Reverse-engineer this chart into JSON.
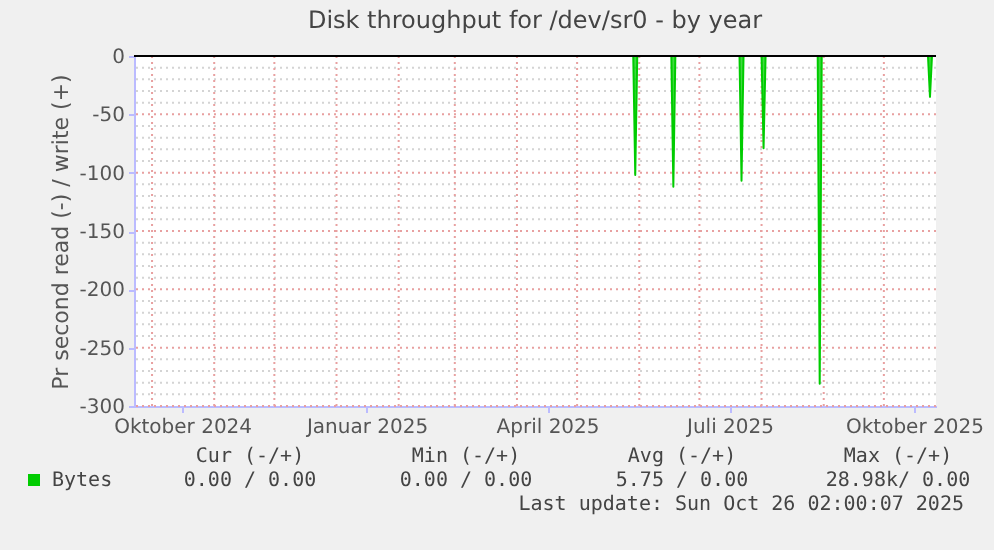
{
  "chart_data": {
    "type": "area",
    "title": "Disk throughput for /dev/sr0 - by year",
    "ylabel": "Pr second read (-) / write (+)",
    "series": [
      {
        "name": "Bytes",
        "color": "#00cc00",
        "x": [
          "2024-09-22",
          "2025-05-29",
          "2025-05-30",
          "2025-05-31",
          "2025-06-17",
          "2025-06-18",
          "2025-06-19",
          "2025-07-21",
          "2025-07-22",
          "2025-07-23",
          "2025-08-01",
          "2025-08-02",
          "2025-08-03",
          "2025-08-29",
          "2025-08-30",
          "2025-08-31",
          "2025-10-23",
          "2025-10-24",
          "2025-10-25",
          "2025-10-26"
        ],
        "values": [
          0,
          0,
          -102,
          0,
          0,
          -112,
          0,
          0,
          -107,
          0,
          0,
          -79,
          0,
          0,
          -281,
          0,
          0,
          -35,
          0,
          0
        ]
      }
    ],
    "xlim": [
      "2024-09-22",
      "2025-10-27"
    ],
    "xticks": [
      {
        "value": "2024-10-16",
        "label": "Oktober 2024"
      },
      {
        "value": "2025-01-16",
        "label": "Januar 2025"
      },
      {
        "value": "2025-04-16",
        "label": "April 2025"
      },
      {
        "value": "2025-07-16",
        "label": "Juli 2025"
      },
      {
        "value": "2025-10-16",
        "label": "Oktober 2025"
      },
      {
        "value": "2024-10-01",
        "label": null
      },
      {
        "value": "2024-11-01",
        "label": null
      },
      {
        "value": "2024-12-01",
        "label": null
      },
      {
        "value": "2025-01-01",
        "label": null
      },
      {
        "value": "2025-02-01",
        "label": null
      },
      {
        "value": "2025-03-01",
        "label": null
      },
      {
        "value": "2025-04-01",
        "label": null
      },
      {
        "value": "2025-05-01",
        "label": null
      },
      {
        "value": "2025-06-01",
        "label": null
      },
      {
        "value": "2025-07-01",
        "label": null
      },
      {
        "value": "2025-08-01",
        "label": null
      },
      {
        "value": "2025-09-01",
        "label": null
      },
      {
        "value": "2025-10-01",
        "label": null
      }
    ],
    "ylim": [
      -300,
      0
    ],
    "yticks": [
      0,
      -50,
      -100,
      -150,
      -200,
      -250,
      -300,
      {
        "value": -10,
        "label": null
      },
      {
        "value": -20,
        "label": null
      },
      {
        "value": -30,
        "label": null
      },
      {
        "value": -40,
        "label": null
      },
      {
        "value": -60,
        "label": null
      },
      {
        "value": -70,
        "label": null
      },
      {
        "value": -80,
        "label": null
      },
      {
        "value": -90,
        "label": null
      },
      {
        "value": -110,
        "label": null
      },
      {
        "value": -120,
        "label": null
      },
      {
        "value": -130,
        "label": null
      },
      {
        "value": -140,
        "label": null
      },
      {
        "value": -160,
        "label": null
      },
      {
        "value": -170,
        "label": null
      },
      {
        "value": -180,
        "label": null
      },
      {
        "value": -190,
        "label": null
      },
      {
        "value": -210,
        "label": null
      },
      {
        "value": -220,
        "label": null
      },
      {
        "value": -230,
        "label": null
      },
      {
        "value": -240,
        "label": null
      },
      {
        "value": -260,
        "label": null
      },
      {
        "value": -270,
        "label": null
      },
      {
        "value": -280,
        "label": null
      },
      {
        "value": -290,
        "label": null
      }
    ],
    "ref_lines": [
      {
        "axis": "y",
        "value": 0,
        "color": "#000000"
      }
    ],
    "grid": true,
    "legend": "bottom left",
    "annotations": [
      "Cur (-/+)",
      "Min (-/+)",
      "Avg (-/+)",
      "Max (-/+)",
      "0.00 /  0.00",
      "0.00 /  0.00",
      "5.75 /  0.00",
      "28.98k/  0.00",
      "Last update: Sun Oct 26 02:00:07 2025"
    ]
  }
}
